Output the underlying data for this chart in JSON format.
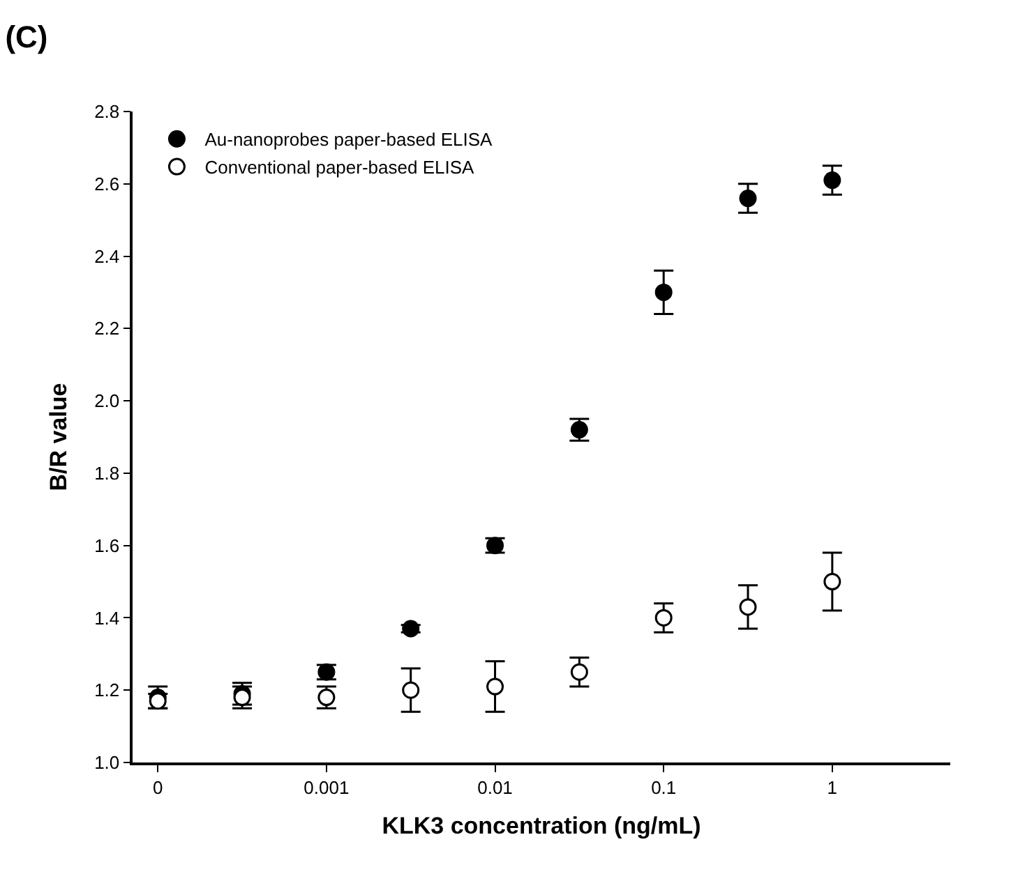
{
  "chart_data": {
    "type": "scatter",
    "title": "(C)",
    "xlabel": "KLK3 concentration (ng/mL)",
    "ylabel": "B/R value",
    "categories": [
      "0",
      null,
      "0.001",
      null,
      "0.01",
      null,
      "0.1",
      null,
      "1"
    ],
    "ylim": [
      1.0,
      2.8
    ],
    "yticks": [
      {
        "value": 1.0,
        "label": "1.0"
      },
      {
        "value": 1.2,
        "label": "1.2"
      },
      {
        "value": 1.4,
        "label": "1.4"
      },
      {
        "value": 1.6,
        "label": "1.6"
      },
      {
        "value": 1.8,
        "label": "1.8"
      },
      {
        "value": 2.0,
        "label": "2.0"
      },
      {
        "value": 2.2,
        "label": "2.2"
      },
      {
        "value": 2.4,
        "label": "2.4"
      },
      {
        "value": 2.6,
        "label": "2.6"
      },
      {
        "value": 2.8,
        "label": "2.8"
      }
    ],
    "legend": "top left",
    "marker": "circle",
    "series": [
      {
        "name": "Au-nanoprobes paper-based ELISA",
        "color": "#000000",
        "values": [
          1.18,
          1.19,
          1.25,
          1.37,
          1.6,
          1.92,
          2.3,
          2.56,
          2.61
        ],
        "errors": [
          0.03,
          0.03,
          0.02,
          0.01,
          0.02,
          0.03,
          0.06,
          0.04,
          0.04
        ]
      },
      {
        "name": "Conventional paper-based ELISA",
        "color": "#ffffff",
        "values": [
          1.17,
          1.18,
          1.18,
          1.2,
          1.21,
          1.25,
          1.4,
          1.43,
          1.5
        ],
        "errors": [
          0.02,
          0.03,
          0.03,
          0.06,
          0.07,
          0.04,
          0.04,
          0.06,
          0.08
        ]
      }
    ]
  }
}
